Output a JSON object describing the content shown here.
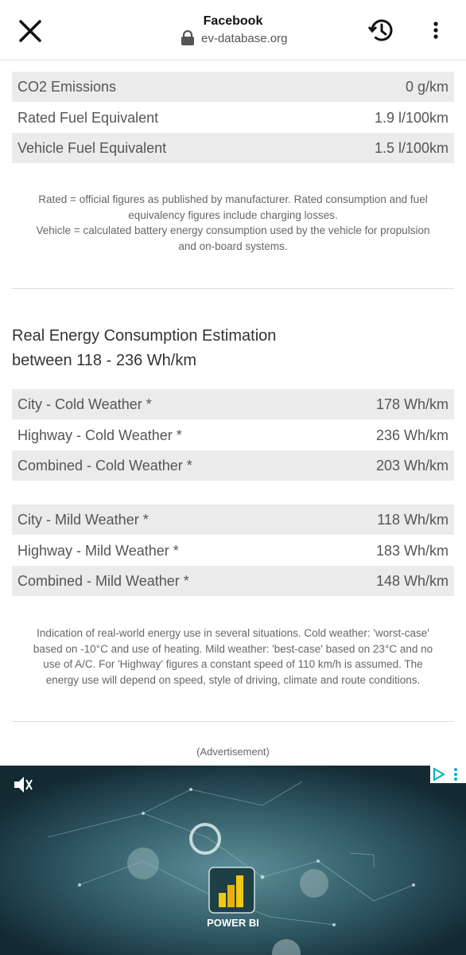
{
  "header": {
    "title": "Facebook",
    "url": "ev-database.org"
  },
  "consumption_table": {
    "rows": [
      [
        "CO2 Emissions",
        "0 g/km"
      ],
      [
        "Rated Fuel Equivalent",
        "1.9 l/100km"
      ],
      [
        "Vehicle Fuel Equivalent",
        "1.5 l/100km"
      ]
    ]
  },
  "consumption_note": {
    "lines": [
      "Rated = official figures as published by manufacturer. Rated consumption and fuel",
      "equivalency figures include charging losses.",
      "Vehicle = calculated battery energy consumption used by the vehicle for propulsion",
      "and on-board systems."
    ]
  },
  "real_energy": {
    "heading": [
      "Real Energy Consumption Estimation",
      "between 118 - 236 Wh/km"
    ],
    "cold_table": {
      "rows": [
        [
          "City - Cold Weather *",
          "178 Wh/km"
        ],
        [
          "Highway - Cold Weather *",
          "236 Wh/km"
        ],
        [
          "Combined - Cold Weather *",
          "203 Wh/km"
        ]
      ]
    },
    "mild_table": {
      "rows": [
        [
          "City - Mild Weather *",
          "118 Wh/km"
        ],
        [
          "Highway - Mild Weather *",
          "183 Wh/km"
        ],
        [
          "Combined - Mild Weather *",
          "148 Wh/km"
        ]
      ]
    },
    "note": {
      "lines": [
        "Indication of real-world energy use in several situations. Cold weather: 'worst-case'",
        "based on -10°C and use of heating. Mild weather: 'best-case' based on 23°C and no",
        "use of A/C. For 'Highway' figures a constant speed of 110 km/h is assumed. The",
        "energy use will depend on speed, style of driving, climate and route conditions."
      ]
    }
  },
  "advertisement": {
    "label": "(Advertisement)",
    "brand": "POWER BI"
  }
}
